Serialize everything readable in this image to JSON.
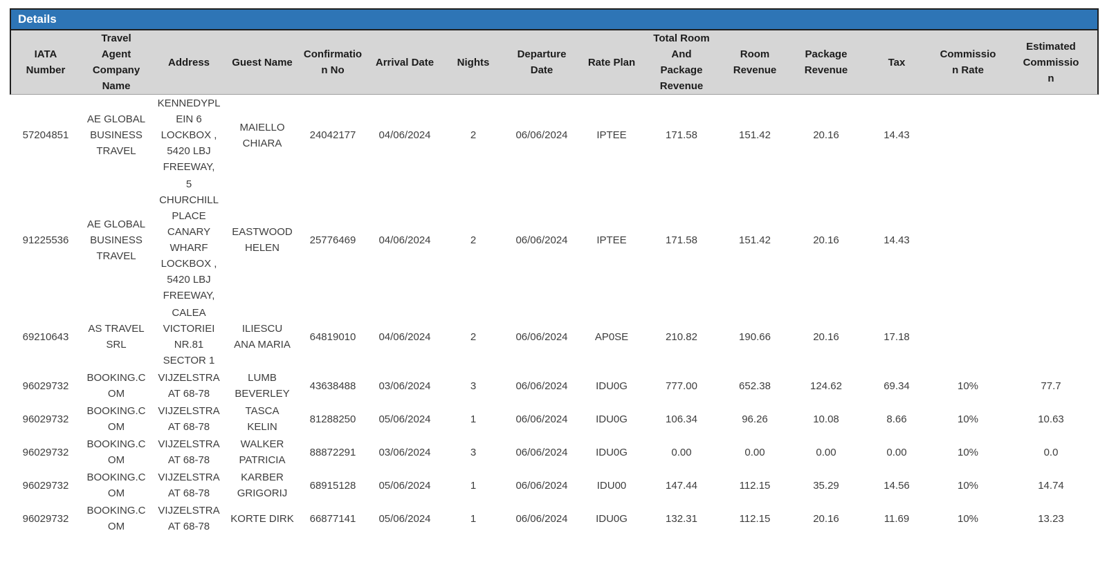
{
  "panel": {
    "title": "Details"
  },
  "table": {
    "columns": [
      "IATA Number",
      "Travel Agent Company Name",
      "Address",
      "Guest Name",
      "Confirmation No",
      "Arrival Date",
      "Nights",
      "Departure Date",
      "Rate Plan",
      "Total Room And Package Revenue",
      "Room Revenue",
      "Package Revenue",
      "Tax",
      "Commission Rate",
      "Estimated Commission"
    ],
    "rows": [
      [
        "57204851",
        "AE GLOBAL BUSINESS TRAVEL",
        "KENNEDYPLEIN 6 LOCKBOX , 5420 LBJ FREEWAY,",
        "MAIELLO CHIARA",
        "24042177",
        "04/06/2024",
        "2",
        "06/06/2024",
        "IPTEE",
        "171.58",
        "151.42",
        "20.16",
        "14.43",
        "",
        ""
      ],
      [
        "91225536",
        "AE GLOBAL BUSINESS TRAVEL",
        "5 CHURCHILL PLACE CANARY WHARF LOCKBOX , 5420 LBJ FREEWAY,",
        "EASTWOOD HELEN",
        "25776469",
        "04/06/2024",
        "2",
        "06/06/2024",
        "IPTEE",
        "171.58",
        "151.42",
        "20.16",
        "14.43",
        "",
        ""
      ],
      [
        "69210643",
        "AS TRAVEL SRL",
        "CALEA VICTORIEI NR.81 SECTOR 1",
        "ILIESCU ANA MARIA",
        "64819010",
        "04/06/2024",
        "2",
        "06/06/2024",
        "AP0SE",
        "210.82",
        "190.66",
        "20.16",
        "17.18",
        "",
        ""
      ],
      [
        "96029732",
        "BOOKING.COM",
        "VIJZELSTRAAT 68-78",
        "LUMB BEVERLEY",
        "43638488",
        "03/06/2024",
        "3",
        "06/06/2024",
        "IDU0G",
        "777.00",
        "652.38",
        "124.62",
        "69.34",
        "10%",
        "77.7"
      ],
      [
        "96029732",
        "BOOKING.COM",
        "VIJZELSTRAAT 68-78",
        "TASCA KELIN",
        "81288250",
        "05/06/2024",
        "1",
        "06/06/2024",
        "IDU0G",
        "106.34",
        "96.26",
        "10.08",
        "8.66",
        "10%",
        "10.63"
      ],
      [
        "96029732",
        "BOOKING.COM",
        "VIJZELSTRAAT 68-78",
        "WALKER PATRICIA",
        "88872291",
        "03/06/2024",
        "3",
        "06/06/2024",
        "IDU0G",
        "0.00",
        "0.00",
        "0.00",
        "0.00",
        "10%",
        "0.0"
      ],
      [
        "96029732",
        "BOOKING.COM",
        "VIJZELSTRAAT 68-78",
        "KARBER GRIGORIJ",
        "68915128",
        "05/06/2024",
        "1",
        "06/06/2024",
        "IDU00",
        "147.44",
        "112.15",
        "35.29",
        "14.56",
        "10%",
        "14.74"
      ],
      [
        "96029732",
        "BOOKING.COM",
        "VIJZELSTRAAT 68-78",
        "KORTE DIRK",
        "66877141",
        "05/06/2024",
        "1",
        "06/06/2024",
        "IDU0G",
        "132.31",
        "112.15",
        "20.16",
        "11.69",
        "10%",
        "13.23"
      ]
    ]
  },
  "colors": {
    "title_bar_bg": "#2E75B6",
    "title_text": "#FFFFFF",
    "header_bg": "#D6D6D6",
    "header_text": "#1C1C1C",
    "body_text": "#3D3D3D",
    "panel_border": "#1F1F1F",
    "header_bottom_border": "#9E9E9E",
    "page_bg": "#FFFFFF"
  }
}
